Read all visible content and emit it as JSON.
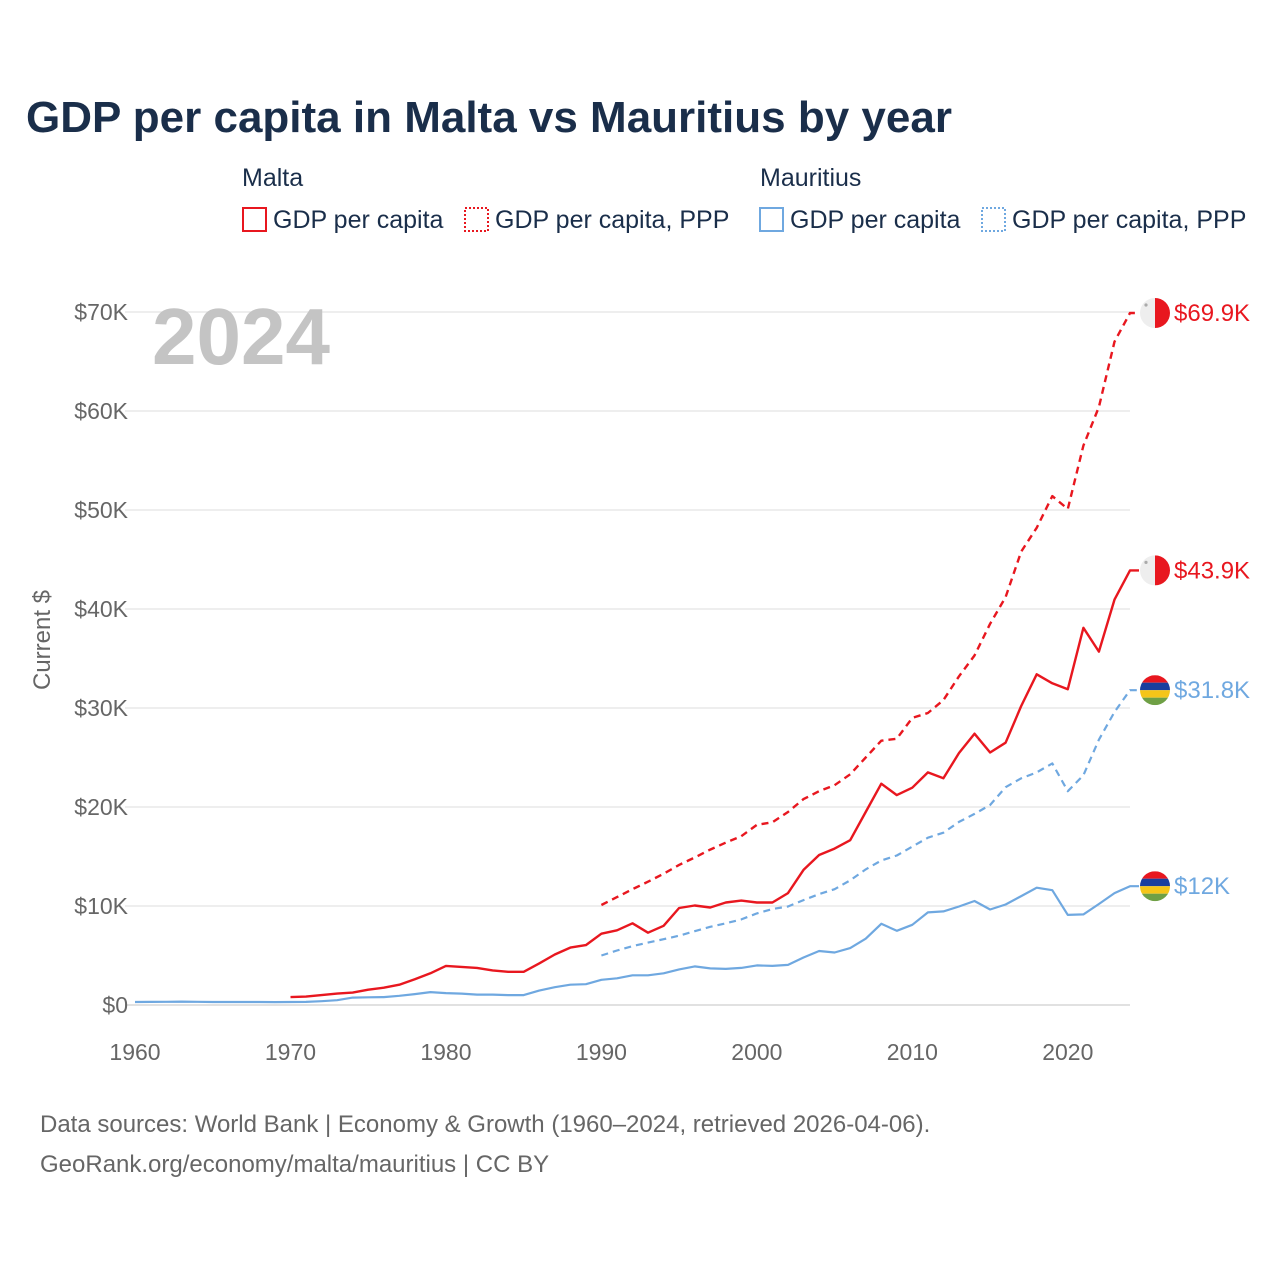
{
  "title": "GDP per capita in Malta vs Mauritius by year",
  "big_year": "2024",
  "source_line1": "Data sources: World Bank | Economy & Growth (1960–2024, retrieved 2026-04-06).",
  "source_line2": "GeoRank.org/economy/malta/mauritius | CC BY",
  "legend": {
    "group_malta": "Malta",
    "group_mauritius": "Mauritius",
    "malta_gdp": "GDP per capita",
    "malta_ppp": "GDP per capita, PPP",
    "mauritius_gdp": "GDP per capita",
    "mauritius_ppp": "GDP per capita, PPP"
  },
  "colors": {
    "malta": "#e8171f",
    "mauritius": "#6fa8e0"
  },
  "chart_data": {
    "type": "line",
    "title": "GDP per capita in Malta vs Mauritius by year",
    "xlabel": "",
    "ylabel": "Current $",
    "xlim": [
      1960,
      2024
    ],
    "ylim": [
      0,
      70000
    ],
    "x_ticks": [
      1960,
      1970,
      1980,
      1990,
      2000,
      2010,
      2020
    ],
    "x_tick_labels": [
      "1960",
      "1970",
      "1980",
      "1990",
      "2000",
      "2010",
      "2020"
    ],
    "y_ticks": [
      0,
      10000,
      20000,
      30000,
      40000,
      50000,
      60000,
      70000
    ],
    "y_tick_labels": [
      "$0",
      "$10K",
      "$20K",
      "$30K",
      "$40K",
      "$50K",
      "$60K",
      "$70K"
    ],
    "grid": true,
    "series": [
      {
        "name": "Malta — GDP per capita",
        "country": "Malta",
        "style": "solid",
        "end_label": "$43.9K",
        "start_year": 1970,
        "values": [
          800,
          850,
          1000,
          1150,
          1250,
          1550,
          1750,
          2050,
          2600,
          3200,
          3950,
          3850,
          3750,
          3500,
          3350,
          3350,
          4200,
          5100,
          5800,
          6050,
          7200,
          7550,
          8250,
          7300,
          8000,
          9800,
          10050,
          9850,
          10350,
          10550,
          10350,
          10350,
          11300,
          13650,
          15150,
          15800,
          16650,
          19500,
          22350,
          21200,
          21950,
          23500,
          22900,
          25450,
          27400,
          25500,
          26500,
          30200,
          33400,
          32500,
          31900,
          38100,
          35700,
          40950,
          43900
        ]
      },
      {
        "name": "Malta — GDP per capita, PPP",
        "country": "Malta",
        "style": "dashed",
        "end_label": "$69.9K",
        "start_year": 1990,
        "values": [
          10100,
          10900,
          11700,
          12450,
          13250,
          14150,
          14900,
          15700,
          16400,
          17050,
          18200,
          18450,
          19500,
          20800,
          21600,
          22200,
          23300,
          25000,
          26700,
          26900,
          29000,
          29500,
          30800,
          33200,
          35300,
          38500,
          41200,
          45800,
          48200,
          51400,
          50100,
          56500,
          60400,
          67000,
          69900
        ]
      },
      {
        "name": "Mauritius — GDP per capita",
        "country": "Mauritius",
        "style": "solid",
        "end_label": "$12K",
        "start_year": 1960,
        "values": [
          300,
          310,
          320,
          340,
          320,
          300,
          300,
          300,
          300,
          290,
          300,
          310,
          380,
          480,
          750,
          780,
          800,
          930,
          1100,
          1300,
          1200,
          1150,
          1050,
          1050,
          1000,
          1000,
          1450,
          1800,
          2050,
          2100,
          2550,
          2700,
          3000,
          3000,
          3200,
          3600,
          3900,
          3700,
          3650,
          3750,
          4000,
          3950,
          4050,
          4800,
          5450,
          5300,
          5750,
          6700,
          8200,
          7500,
          8100,
          9350,
          9450,
          9950,
          10500,
          9650,
          10150,
          11000,
          11850,
          11600,
          9100,
          9150,
          10200,
          11300,
          12000
        ]
      },
      {
        "name": "Mauritius — GDP per capita, PPP",
        "country": "Mauritius",
        "style": "dashed",
        "end_label": "$31.8K",
        "start_year": 1990,
        "values": [
          5000,
          5500,
          5950,
          6300,
          6650,
          7000,
          7450,
          7900,
          8250,
          8650,
          9250,
          9700,
          9950,
          10600,
          11200,
          11700,
          12600,
          13700,
          14600,
          15100,
          16000,
          16900,
          17400,
          18500,
          19300,
          20200,
          22000,
          22900,
          23500,
          24400,
          21600,
          23200,
          26800,
          29600,
          31800
        ]
      }
    ]
  }
}
